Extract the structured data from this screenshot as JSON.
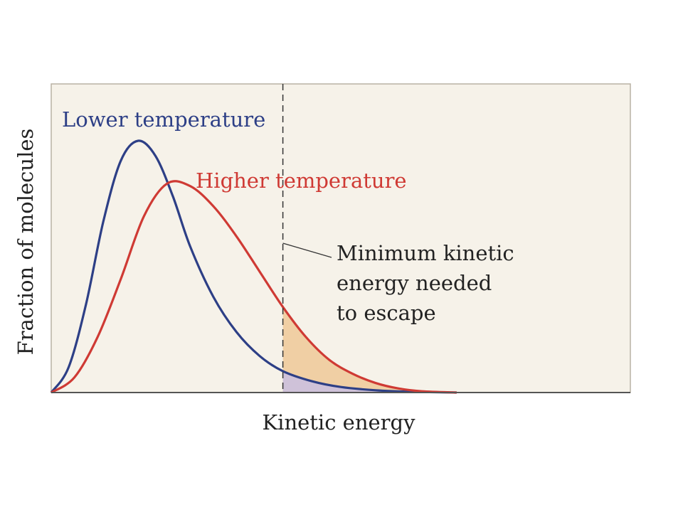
{
  "chart_data": {
    "type": "line",
    "title": "",
    "xlabel": "Kinetic energy",
    "ylabel": "Fraction of molecules",
    "xlim": [
      0,
      10
    ],
    "ylim": [
      0,
      1
    ],
    "grid": false,
    "series": [
      {
        "name": "Lower temperature",
        "color": "#2d3f86",
        "x": [
          0,
          0.3,
          0.6,
          0.9,
          1.2,
          1.5,
          1.8,
          2.1,
          2.4,
          2.8,
          3.2,
          3.6,
          4.0,
          4.5,
          5.0,
          5.6,
          6.2,
          7.0
        ],
        "values": [
          0,
          0.1,
          0.35,
          0.68,
          0.92,
          1.0,
          0.94,
          0.78,
          0.58,
          0.38,
          0.24,
          0.145,
          0.085,
          0.045,
          0.022,
          0.009,
          0.003,
          0
        ]
      },
      {
        "name": "Higher temperature",
        "color": "#cf3a34",
        "x": [
          0,
          0.4,
          0.8,
          1.2,
          1.6,
          2.0,
          2.4,
          2.8,
          3.2,
          3.6,
          4.0,
          4.4,
          4.8,
          5.2,
          5.6,
          6.0,
          6.4,
          7.0
        ],
        "values": [
          0,
          0.06,
          0.22,
          0.45,
          0.7,
          0.83,
          0.82,
          0.74,
          0.62,
          0.48,
          0.34,
          0.22,
          0.13,
          0.075,
          0.038,
          0.016,
          0.005,
          0
        ]
      }
    ],
    "threshold": {
      "x": 4.0,
      "label_lines": [
        "Minimum kinetic",
        "energy needed",
        "to escape"
      ],
      "fill_low_color": "#c9bfe3",
      "fill_high_color": "#efc998"
    }
  }
}
